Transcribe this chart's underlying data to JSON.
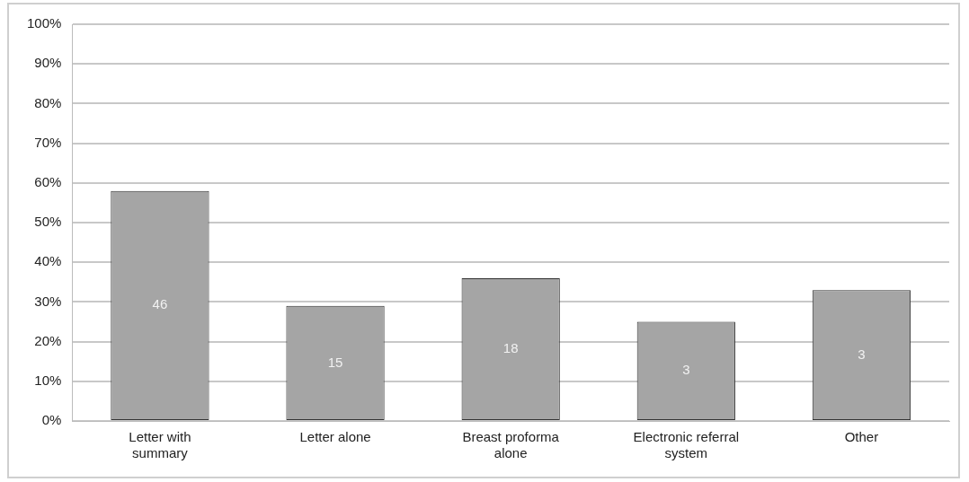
{
  "chart_data": {
    "type": "bar",
    "categories": [
      "Letter with summary",
      "Letter alone",
      "Breast proforma alone",
      "Electronic referral system",
      "Other"
    ],
    "values": [
      58,
      29,
      36,
      25,
      33
    ],
    "annotations": [
      "46",
      "15",
      "18",
      "3",
      "3"
    ],
    "color": "#a5a5a5",
    "ylim": [
      0,
      100
    ],
    "yticks": [
      {
        "value": 0,
        "label": "0%"
      },
      {
        "value": 10,
        "label": "10%"
      },
      {
        "value": 20,
        "label": "20%"
      },
      {
        "value": 30,
        "label": "30%"
      },
      {
        "value": 40,
        "label": "40%"
      },
      {
        "value": 50,
        "label": "50%"
      },
      {
        "value": 60,
        "label": "60%"
      },
      {
        "value": 70,
        "label": "70%"
      },
      {
        "value": 80,
        "label": "80%"
      },
      {
        "value": 90,
        "label": "90%"
      },
      {
        "value": 100,
        "label": "100%"
      }
    ],
    "grid": "y",
    "legend": false
  }
}
